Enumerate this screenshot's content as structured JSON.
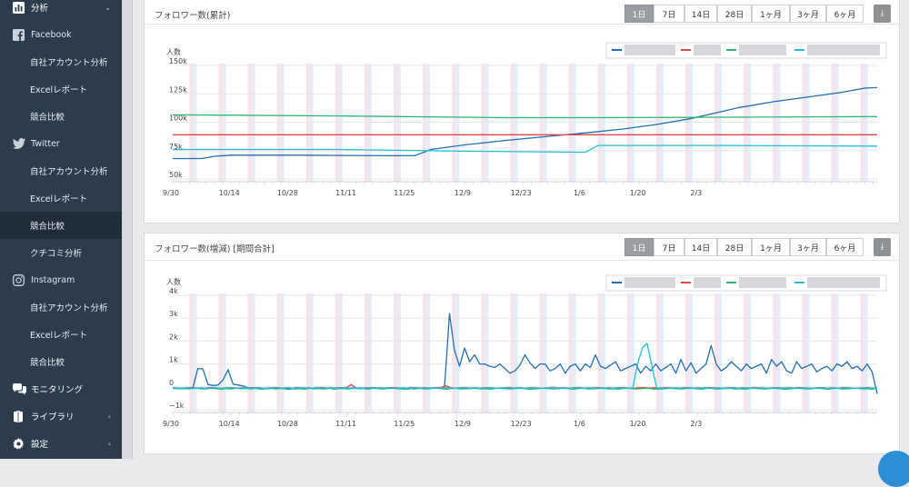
{
  "sidebar": {
    "items": [
      {
        "label": "分析",
        "icon": "bar-chart-icon",
        "kind": "section",
        "chev": "⌄"
      },
      {
        "label": "Facebook",
        "icon": "facebook-icon",
        "kind": "head"
      },
      {
        "label": "自社アカウント分析",
        "kind": "sub"
      },
      {
        "label": "Excelレポート",
        "kind": "sub"
      },
      {
        "label": "競合比較",
        "kind": "sub"
      },
      {
        "label": "Twitter",
        "icon": "twitter-icon",
        "kind": "head"
      },
      {
        "label": "自社アカウント分析",
        "kind": "sub"
      },
      {
        "label": "Excelレポート",
        "kind": "sub"
      },
      {
        "label": "競合比較",
        "kind": "sub",
        "active": true
      },
      {
        "label": "クチコミ分析",
        "kind": "sub"
      },
      {
        "label": "Instagram",
        "icon": "instagram-icon",
        "kind": "head"
      },
      {
        "label": "自社アカウント分析",
        "kind": "sub"
      },
      {
        "label": "Excelレポート",
        "kind": "sub"
      },
      {
        "label": "競合比較",
        "kind": "sub"
      },
      {
        "label": "モニタリング",
        "icon": "chat-bubbles-icon",
        "kind": "section"
      },
      {
        "label": "ライブラリ",
        "icon": "book-icon",
        "kind": "section",
        "chev": "‹"
      },
      {
        "label": "設定",
        "icon": "gear-icon",
        "kind": "section",
        "chev": "‹"
      }
    ]
  },
  "ranges": [
    "1日",
    "7日",
    "14日",
    "28日",
    "1ヶ月",
    "3ヶ月",
    "6ヶ月"
  ],
  "selected_range": "1日",
  "colors": {
    "blue": "#1f6fb5",
    "red": "#e0474c",
    "green": "#2bb673",
    "cyan": "#1ec0d8"
  },
  "panels": [
    {
      "title": "フォロワー数(累計)",
      "yunit": "人数"
    },
    {
      "title": "フォロワー数(増減) [期間合計]",
      "yunit": "人数"
    }
  ],
  "chart_data": [
    {
      "type": "line",
      "title": "フォロワー数(累計)",
      "ylabel": "人数",
      "x_ticks": [
        "9/30",
        "10/14",
        "10/28",
        "11/11",
        "11/25",
        "12/9",
        "12/23",
        "1/6",
        "1/20",
        "2/3"
      ],
      "y_ticks": [
        "150k",
        "125k",
        "100k",
        "75k",
        "50k"
      ],
      "ylim": [
        50000,
        150000
      ],
      "x_days": 113,
      "series": [
        {
          "color": "#1f6fb5",
          "points": [
            [
              0,
              68000
            ],
            [
              7,
              68000
            ],
            [
              10,
              70000
            ],
            [
              14,
              71000
            ],
            [
              30,
              71000
            ],
            [
              50,
              70500
            ],
            [
              58,
              70500
            ],
            [
              62,
              76000
            ],
            [
              70,
              80000
            ],
            [
              80,
              84000
            ],
            [
              90,
              87500
            ],
            [
              100,
              91000
            ],
            [
              108,
              94000
            ],
            [
              116,
              98000
            ],
            [
              124,
              103000
            ],
            [
              130,
              108000
            ],
            [
              136,
              113000
            ],
            [
              144,
              118000
            ],
            [
              152,
              122000
            ],
            [
              160,
              126000
            ],
            [
              166,
              130000
            ],
            [
              169,
              130500
            ]
          ]
        },
        {
          "color": "#e0474c",
          "points": [
            [
              0,
              89000
            ],
            [
              169,
              89000
            ]
          ]
        },
        {
          "color": "#2bb673",
          "points": [
            [
              0,
              106500
            ],
            [
              40,
              105500
            ],
            [
              80,
              104000
            ],
            [
              100,
              104000
            ],
            [
              140,
              104500
            ],
            [
              169,
              105000
            ]
          ]
        },
        {
          "color": "#1ec0d8",
          "points": [
            [
              0,
              76000
            ],
            [
              40,
              76000
            ],
            [
              70,
              74500
            ],
            [
              99,
              73500
            ],
            [
              102,
              79500
            ],
            [
              130,
              79500
            ],
            [
              169,
              79000
            ]
          ]
        }
      ]
    },
    {
      "type": "line",
      "title": "フォロワー数(増減) [期間合計]",
      "ylabel": "人数",
      "x_ticks": [
        "9/30",
        "10/14",
        "10/28",
        "11/11",
        "11/25",
        "12/9",
        "12/23",
        "1/6",
        "1/20",
        "2/3"
      ],
      "y_ticks": [
        "4k",
        "3k",
        "2k",
        "1k",
        "0",
        "−1k"
      ],
      "ylim": [
        -1000,
        4000
      ],
      "series": [
        {
          "color": "#1f6fb5",
          "values": [
            -50,
            -60,
            -80,
            -50,
            -40,
            800,
            780,
            100,
            60,
            80,
            300,
            750,
            120,
            80,
            40,
            -40,
            -60,
            -40,
            -60,
            -80,
            -40,
            -30,
            -80,
            -100,
            -80,
            -60,
            -70,
            -40,
            -80,
            -60,
            -40,
            -60,
            -50,
            -40,
            -70,
            -60,
            -40,
            -80,
            -60,
            -50,
            -40,
            -60,
            -80,
            -40,
            -50,
            -60,
            -70,
            -40,
            -90,
            -60,
            -40,
            -60,
            -50,
            -40,
            -70,
            3200,
            1600,
            900,
            1700,
            1100,
            1400,
            1000,
            1000,
            900,
            850,
            1000,
            800,
            600,
            700,
            950,
            1400,
            1050,
            800,
            1000,
            1000,
            700,
            800,
            1000,
            600,
            900,
            1000,
            700,
            1000,
            850,
            1400,
            900,
            800,
            950,
            1100,
            700,
            800,
            900,
            1000,
            600,
            900,
            700,
            1000,
            700,
            850,
            1000,
            600,
            1200,
            700,
            1050,
            600,
            800,
            1000,
            1800,
            1000,
            700,
            850,
            1100,
            900,
            700,
            1000,
            800,
            900,
            1000,
            600,
            1200,
            900,
            1100,
            700,
            600,
            1100,
            800,
            900,
            1000,
            650,
            800,
            900,
            700,
            1000,
            900,
            1100,
            800,
            900,
            700,
            1000,
            650,
            -300
          ]
        },
        {
          "color": "#e0474c",
          "values": [
            -40,
            -60,
            -60,
            -40,
            -30,
            -50,
            -70,
            -40,
            -30,
            -50,
            -60,
            -40,
            -30,
            -50,
            -40,
            -60,
            -30,
            -40,
            -50,
            -60,
            -40,
            -30,
            -50,
            -40,
            -60,
            -30,
            -40,
            -50,
            -60,
            -40,
            -30,
            -50,
            -40,
            -60,
            -30,
            -40,
            100,
            -50,
            -60,
            -40,
            -30,
            -50,
            -40,
            -60,
            -30,
            -40,
            -50,
            -60,
            -40,
            -30,
            -50,
            -40,
            -60,
            -30,
            -40,
            50,
            -30,
            -60,
            -40,
            -30,
            -50,
            -40,
            -60,
            -30,
            -40,
            -50,
            -60,
            -40,
            -30,
            -50,
            -40,
            -60,
            -30,
            -40,
            -50,
            -60,
            -40,
            -30,
            -50,
            -40,
            -60,
            -30,
            -40,
            -50,
            -60,
            -40,
            -30,
            -50,
            -40,
            -60,
            -30,
            -40,
            -50,
            -60,
            -40,
            -30,
            -50,
            -40,
            -60,
            -30,
            -40,
            -50,
            -60,
            -40,
            -30,
            -50,
            -40,
            -60,
            -30,
            -40,
            -50,
            -60,
            -40,
            -30,
            -50,
            -40,
            -60,
            -30,
            -40,
            -50,
            -60,
            -40,
            -30,
            -50,
            -40,
            -60,
            -30,
            -40,
            -50,
            -60,
            -40,
            -30,
            -50,
            -40,
            -60,
            -30,
            -40,
            -50,
            -60,
            -40,
            -30,
            -50,
            -60
          ]
        },
        {
          "color": "#2bb673",
          "values": [
            -60,
            -80,
            -60,
            -90,
            -70,
            -60,
            -90,
            -80,
            -60,
            -80,
            -100,
            -70,
            -90,
            -60,
            -80,
            -70,
            -90,
            -60,
            -100,
            -80,
            -60,
            -90,
            -70,
            -80,
            -60,
            -90,
            -80,
            -100,
            -60,
            -70,
            -80,
            -90,
            -60,
            -100,
            -70,
            -80,
            -90,
            -60,
            -80,
            -70,
            -100,
            -60,
            -80,
            -90,
            -70,
            -60,
            -80,
            -90,
            -100,
            -70,
            -60,
            -80,
            -90,
            -70,
            -60,
            -80,
            -100,
            -70,
            -60,
            -90,
            -80,
            -70,
            -60,
            -90,
            -80,
            -100,
            -70,
            -60,
            -80,
            -90,
            -70,
            -60,
            -80,
            -100,
            -90,
            -70,
            -60,
            -80,
            -90,
            -70,
            -60,
            -80,
            -100,
            -70,
            -60,
            -90,
            -80,
            -70,
            -60,
            -90,
            -80,
            -100,
            -70,
            -60,
            -80,
            -90,
            -70,
            -60,
            -80,
            -100,
            -90,
            -70,
            -60,
            -80,
            -90,
            -70,
            -60,
            -80,
            -100,
            -70,
            -60,
            -90,
            -80,
            -70,
            -60,
            -90,
            -80,
            -100,
            -70,
            -60,
            -80,
            -90,
            -70,
            -60,
            -80,
            -100,
            -90,
            -70,
            -60,
            -80,
            -90,
            -70,
            -60,
            -80,
            -100,
            -70,
            -60,
            -90,
            -80,
            -70,
            -60,
            -90,
            -80,
            -100,
            -60
          ]
        },
        {
          "color": "#1ec0d8",
          "values": [
            -40,
            -60,
            -50,
            -40,
            -60,
            -50,
            -40,
            -60,
            -50,
            -40,
            -60,
            -50,
            -40,
            -60,
            -50,
            -40,
            -60,
            -50,
            -40,
            -60,
            -50,
            -40,
            -60,
            -50,
            -40,
            -60,
            -50,
            -40,
            -60,
            -50,
            -40,
            -60,
            -50,
            -40,
            -60,
            -50,
            -40,
            -60,
            -50,
            -40,
            -60,
            -50,
            -40,
            -60,
            -50,
            -40,
            -60,
            -50,
            -40,
            -60,
            -50,
            -40,
            -60,
            -50,
            -40,
            -60,
            -50,
            -40,
            -60,
            -50,
            -40,
            -60,
            -50,
            -40,
            -60,
            -50,
            -40,
            -60,
            -50,
            -40,
            -60,
            -50,
            -40,
            -60,
            -50,
            -40,
            -60,
            -50,
            -40,
            -60,
            -50,
            -40,
            -60,
            -50,
            -40,
            -60,
            -50,
            -40,
            -60,
            -50,
            -40,
            -60,
            -50,
            -40,
            -60,
            -50,
            -40,
            1000,
            1700,
            1900,
            900,
            -50,
            -40,
            -60,
            -50,
            -40,
            -60,
            -50,
            -40,
            -60,
            -50,
            -40,
            -60,
            -50,
            -40,
            -60,
            -50,
            -40,
            -60,
            -50,
            -40,
            -60,
            -50,
            -40,
            -60,
            -50,
            -40,
            -60,
            -50,
            -40,
            -60,
            -50,
            -40,
            -60,
            -50,
            -40,
            -60,
            -50,
            -40,
            -60,
            -50,
            -40,
            -60,
            -50,
            -40,
            -60,
            -50,
            -60
          ]
        }
      ]
    }
  ]
}
